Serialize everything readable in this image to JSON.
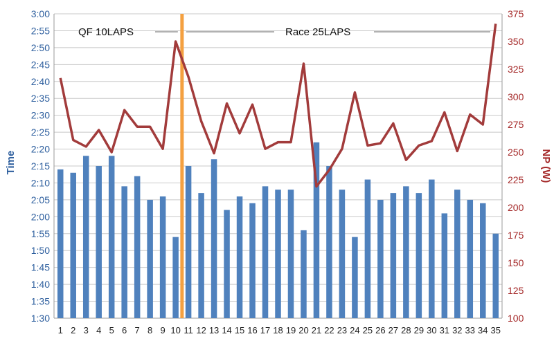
{
  "chart_data": {
    "type": "bar+line",
    "categories": [
      "1",
      "2",
      "3",
      "4",
      "5",
      "6",
      "7",
      "8",
      "9",
      "10",
      "11",
      "12",
      "13",
      "14",
      "15",
      "16",
      "17",
      "18",
      "19",
      "20",
      "21",
      "22",
      "23",
      "24",
      "25",
      "26",
      "27",
      "28",
      "29",
      "30",
      "31",
      "32",
      "33",
      "34",
      "35"
    ],
    "left_axis": {
      "label": "Time",
      "ticks": [
        "1:30",
        "1:35",
        "1:40",
        "1:45",
        "1:50",
        "1:55",
        "2:00",
        "2:05",
        "2:10",
        "2:15",
        "2:20",
        "2:25",
        "2:30",
        "2:35",
        "2:40",
        "2:45",
        "2:50",
        "2:55",
        "3:00"
      ],
      "range_seconds": [
        90,
        180
      ],
      "color": "#2e5f9e"
    },
    "right_axis": {
      "label": "NP (W)",
      "ticks": [
        "100",
        "125",
        "150",
        "175",
        "200",
        "225",
        "250",
        "275",
        "300",
        "325",
        "350",
        "375"
      ],
      "range": [
        100,
        375
      ],
      "color": "#a52a2a"
    },
    "series": [
      {
        "kind": "bar",
        "axis": "left",
        "color": "#4f81bd",
        "values_seconds": [
          134,
          133,
          138,
          135,
          138,
          129,
          132,
          125,
          126,
          114,
          135,
          127,
          137,
          122,
          126,
          124,
          129,
          128,
          128,
          116,
          142,
          135,
          128,
          114,
          131,
          125,
          127,
          129,
          127,
          131,
          121,
          128,
          125,
          124,
          115
        ]
      },
      {
        "kind": "line",
        "axis": "right",
        "color": "#a23b3b",
        "values": [
          317,
          261,
          255,
          270,
          250,
          288,
          273,
          273,
          253,
          350,
          318,
          278,
          249,
          294,
          267,
          293,
          253,
          259,
          259,
          330,
          219,
          234,
          253,
          304,
          256,
          258,
          276,
          243,
          256,
          260,
          286,
          251,
          284,
          275,
          366
        ]
      }
    ],
    "annotations": [
      {
        "text": "QF   10LAPS",
        "after_category": "10"
      },
      {
        "text": "Race   25LAPS"
      }
    ],
    "divider": {
      "between": [
        "10",
        "11"
      ],
      "color": "#f4a040"
    },
    "grid": true
  }
}
